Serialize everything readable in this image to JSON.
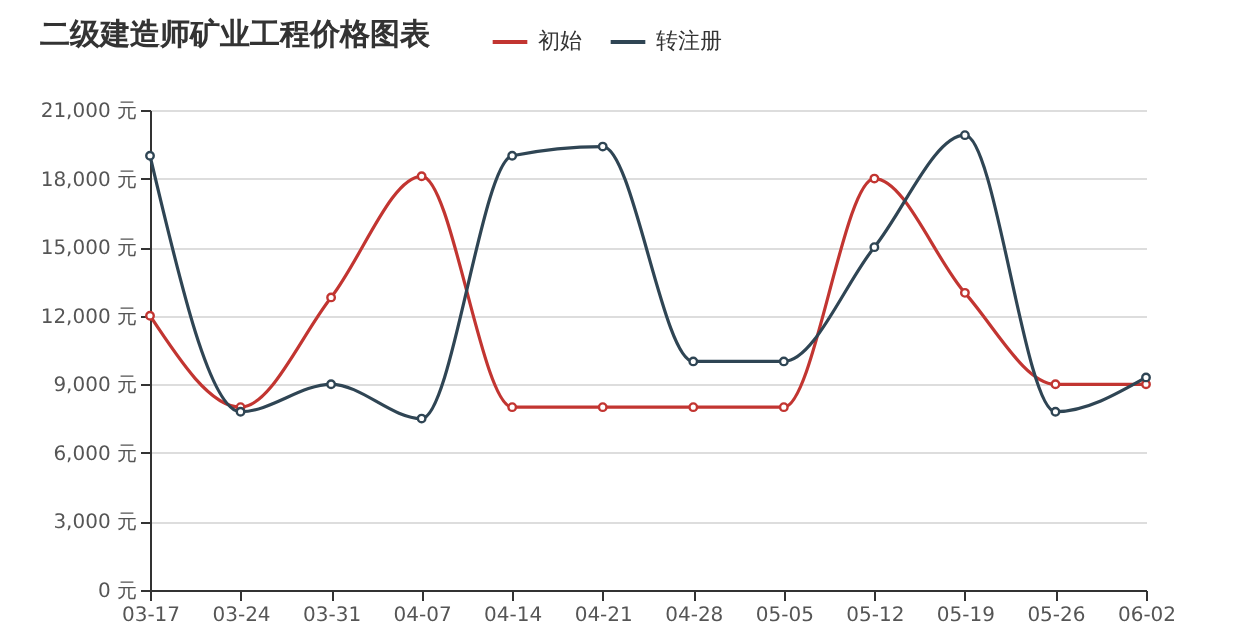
{
  "chart_data": {
    "type": "line",
    "title": "二级建造师矿业工程价格图表",
    "categories": [
      "03-17",
      "03-24",
      "03-31",
      "04-07",
      "04-14",
      "04-21",
      "04-28",
      "05-05",
      "05-12",
      "05-19",
      "05-26",
      "06-02"
    ],
    "series": [
      {
        "name": "初始",
        "color": "#c23531",
        "values": [
          12000,
          8000,
          12800,
          18100,
          8000,
          8000,
          8000,
          8000,
          18000,
          13000,
          9000,
          9000
        ]
      },
      {
        "name": "转注册",
        "color": "#2f4554",
        "values": [
          19000,
          7800,
          9000,
          7500,
          19000,
          19400,
          10000,
          10000,
          15000,
          19900,
          7800,
          9300
        ]
      }
    ],
    "ylim": [
      0,
      21000
    ],
    "yticks": [
      {
        "value": 0,
        "label": "0 元"
      },
      {
        "value": 3000,
        "label": "3,000 元"
      },
      {
        "value": 6000,
        "label": "6,000 元"
      },
      {
        "value": 9000,
        "label": "9,000 元"
      },
      {
        "value": 12000,
        "label": "12,000 元"
      },
      {
        "value": 15000,
        "label": "15,000 元"
      },
      {
        "value": 18000,
        "label": "18,000 元"
      },
      {
        "value": 21000,
        "label": "21,000 元"
      }
    ],
    "grid": "y",
    "legend": "top",
    "marker": "circle",
    "line_style": "solid"
  }
}
